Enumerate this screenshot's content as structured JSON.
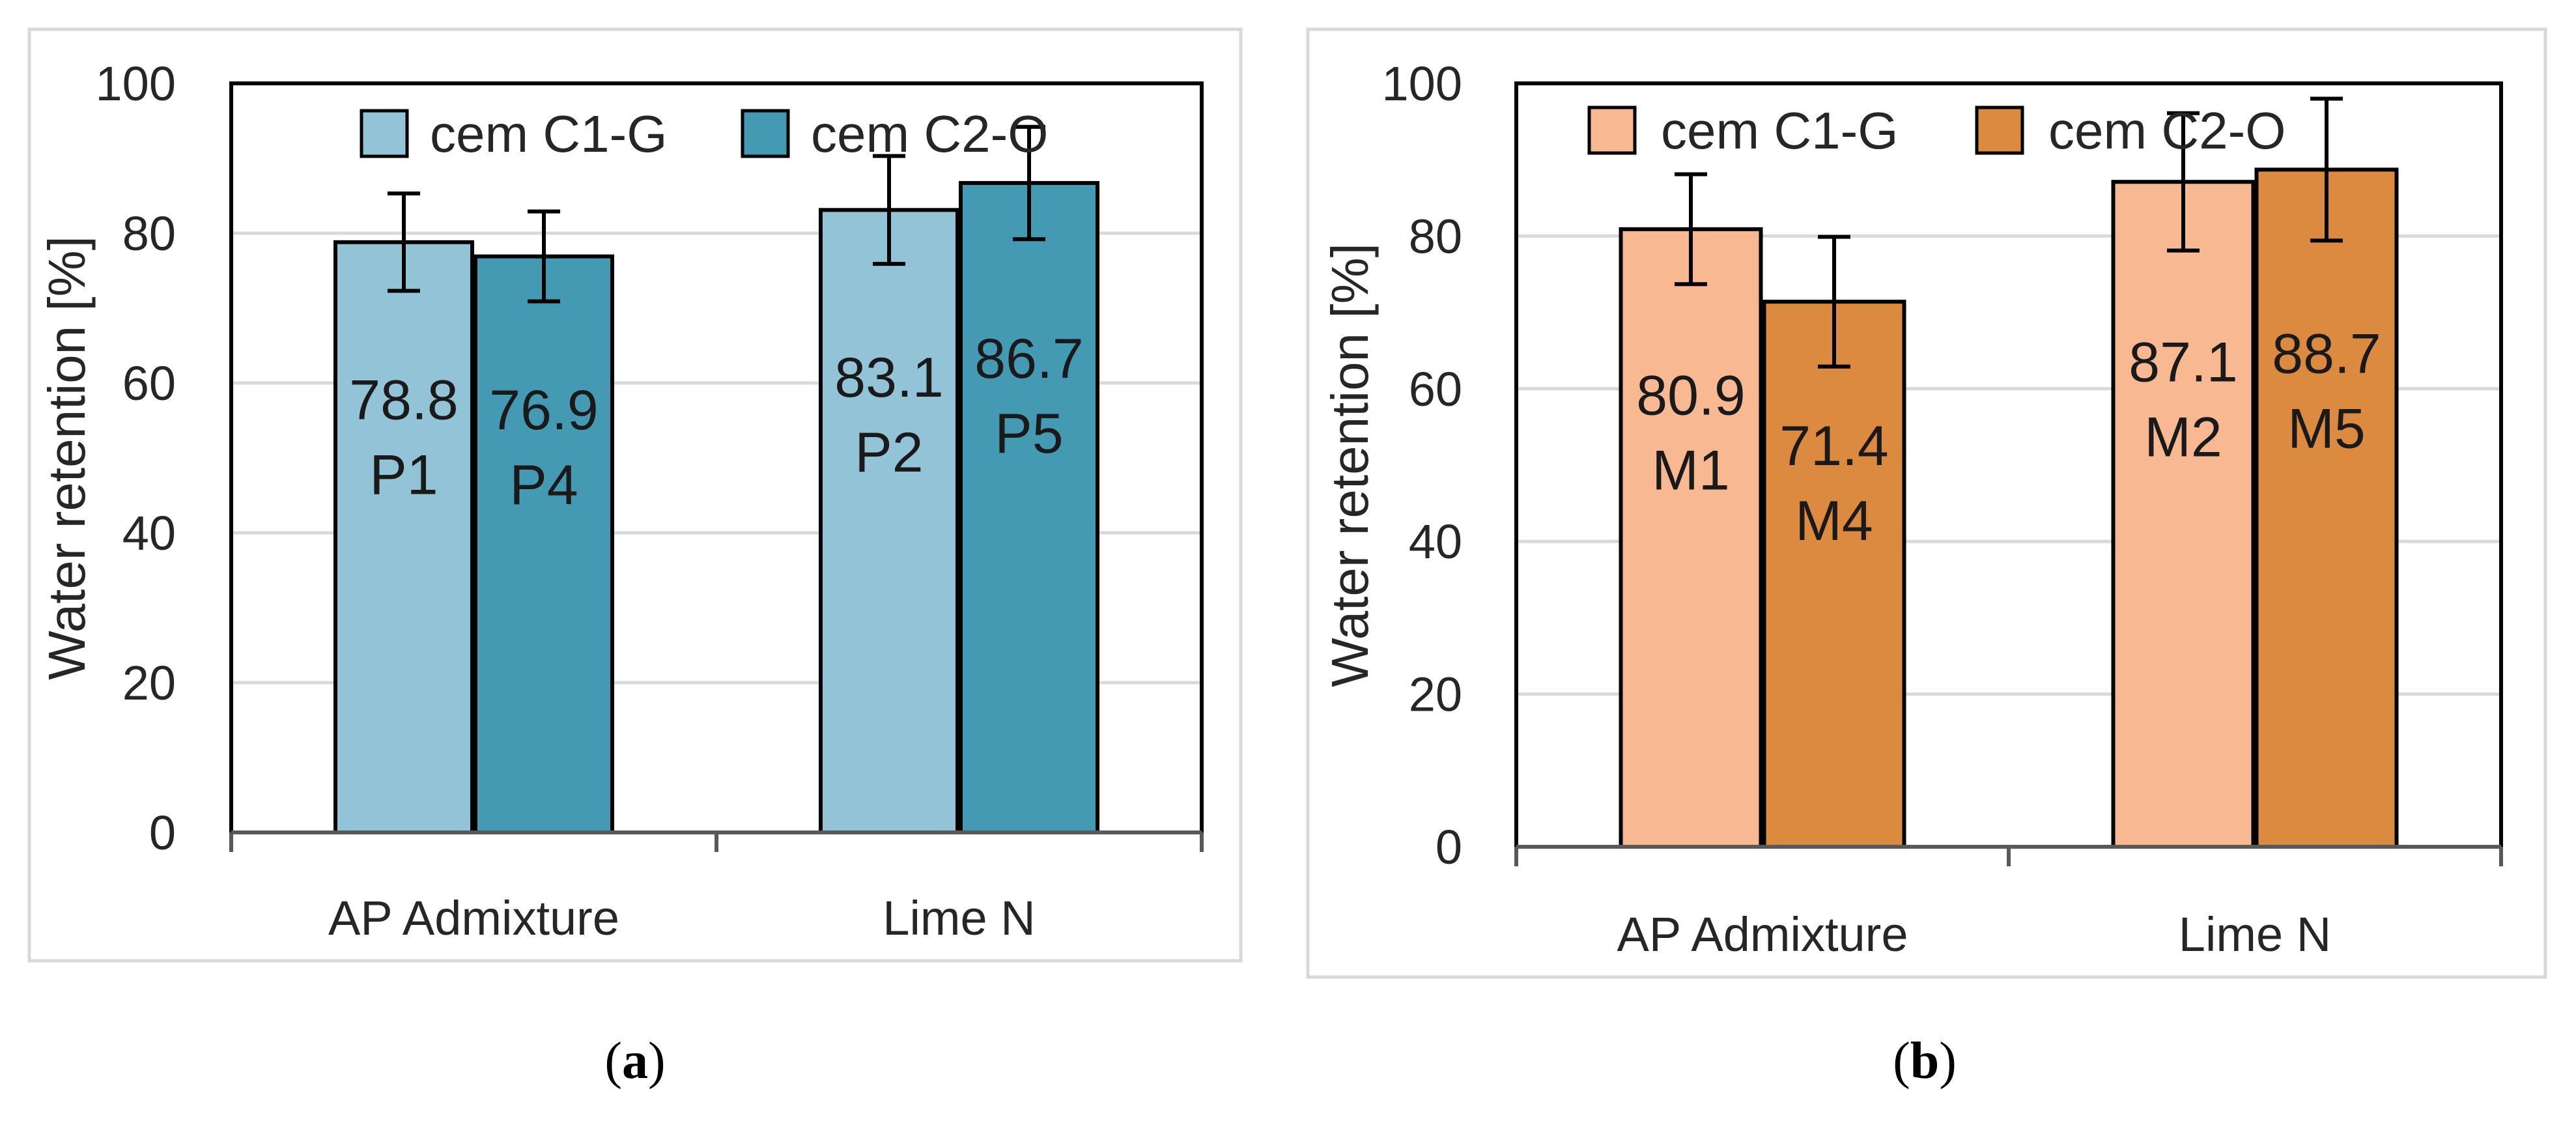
{
  "chart_data": [
    {
      "type": "bar",
      "panel": "a",
      "categories": [
        "AP Admixture",
        "Lime N"
      ],
      "series": [
        {
          "name": "cem C1-G",
          "color": "#92c3d6",
          "values": [
            78.8,
            83.1
          ],
          "errors": [
            6.5,
            7.2
          ],
          "labels": [
            "P1",
            "P2"
          ],
          "value_labels": [
            "78.8",
            "83.1"
          ]
        },
        {
          "name": "cem C2-O",
          "color": "#4499b3",
          "values": [
            76.9,
            86.7
          ],
          "errors": [
            6.0,
            7.5
          ],
          "labels": [
            "P4",
            "P5"
          ],
          "value_labels": [
            "76.9",
            "86.7"
          ]
        }
      ],
      "ylabel": "Water retention [%]",
      "ylim": [
        0,
        100
      ],
      "yticks": [
        "0",
        "20",
        "40",
        "60",
        "80",
        "100"
      ],
      "legend_position": "top",
      "grid": true
    },
    {
      "type": "bar",
      "panel": "b",
      "categories": [
        "AP Admixture",
        "Lime N"
      ],
      "series": [
        {
          "name": "cem C1-G",
          "color": "#f7b892",
          "values": [
            80.9,
            87.1
          ],
          "errors": [
            7.2,
            9.0
          ],
          "labels": [
            "M1",
            "M2"
          ],
          "value_labels": [
            "80.9",
            "87.1"
          ]
        },
        {
          "name": "cem C2-O",
          "color": "#dd8a41",
          "values": [
            71.4,
            88.7
          ],
          "errors": [
            8.5,
            9.3
          ],
          "labels": [
            "M4",
            "M5"
          ],
          "value_labels": [
            "71.4",
            "88.7"
          ]
        }
      ],
      "ylabel": "Water  retention [%]",
      "ylim": [
        0,
        100
      ],
      "yticks": [
        "0",
        "20",
        "40",
        "60",
        "80",
        "100"
      ],
      "legend_position": "top",
      "grid": true
    }
  ],
  "captions": [
    {
      "open": "(",
      "letter": "a",
      "close": ")"
    },
    {
      "open": "(",
      "letter": "b",
      "close": ")"
    }
  ]
}
